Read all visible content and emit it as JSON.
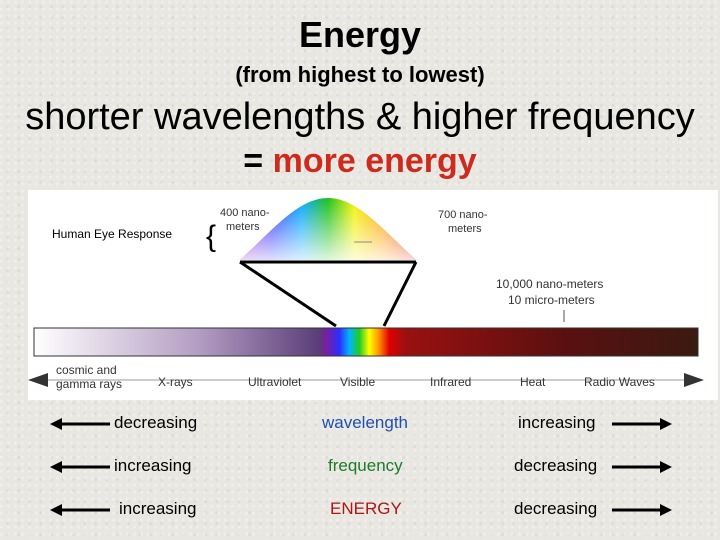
{
  "slide": {
    "title": "Energy",
    "subtitle": "(from highest to lowest)",
    "headline": "shorter wavelengths & higher frequency",
    "conclusion_prefix": "=",
    "conclusion_accent": "more energy"
  },
  "diagram": {
    "human_eye_label": "Human Eye Response",
    "nm400_line1": "400 nano-",
    "nm400_line2": "meters",
    "nm700_line1": "700 nano-",
    "nm700_line2": "meters",
    "nm10000_line1": "10,000 nano-meters",
    "nm10000_line2": "10 micro-meters",
    "bands": [
      "cosmic and",
      "gamma rays",
      "X-rays",
      "Ultraviolet",
      "Visible",
      "Infrared",
      "Heat",
      "Radio Waves"
    ]
  },
  "rows": [
    {
      "left": "decreasing",
      "middle": "wavelength",
      "right": "increasing",
      "middle_color": "#1f4fb0"
    },
    {
      "left": "increasing",
      "middle": "frequency",
      "right": "decreasing",
      "middle_color": "#1d7a2a"
    },
    {
      "left": "increasing",
      "middle": "ENERGY",
      "right": "decreasing",
      "middle_color": "#b01414"
    }
  ]
}
